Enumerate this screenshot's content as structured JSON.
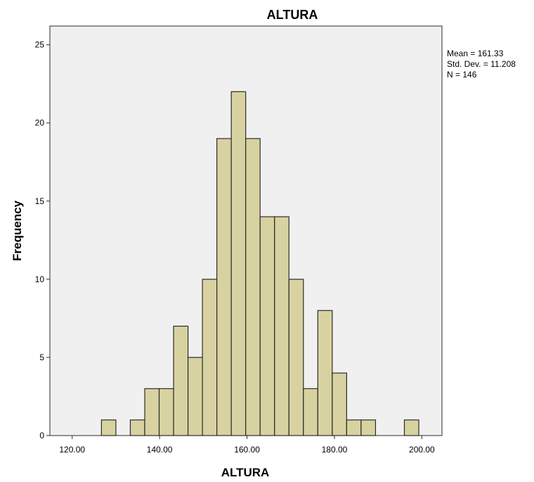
{
  "chart_data": {
    "type": "bar",
    "title": "ALTURA",
    "xlabel": "ALTURA",
    "ylabel": "Frequency",
    "bin_width": 3.3,
    "bins": [
      {
        "x_start": 126.7,
        "count": 1
      },
      {
        "x_start": 133.3,
        "count": 1
      },
      {
        "x_start": 136.6,
        "count": 3
      },
      {
        "x_start": 139.9,
        "count": 3
      },
      {
        "x_start": 143.2,
        "count": 7
      },
      {
        "x_start": 146.5,
        "count": 5
      },
      {
        "x_start": 149.8,
        "count": 10
      },
      {
        "x_start": 153.1,
        "count": 19
      },
      {
        "x_start": 156.4,
        "count": 22
      },
      {
        "x_start": 159.7,
        "count": 19
      },
      {
        "x_start": 163.0,
        "count": 14
      },
      {
        "x_start": 166.3,
        "count": 14
      },
      {
        "x_start": 169.6,
        "count": 10
      },
      {
        "x_start": 172.9,
        "count": 3
      },
      {
        "x_start": 176.2,
        "count": 8
      },
      {
        "x_start": 179.5,
        "count": 4
      },
      {
        "x_start": 182.8,
        "count": 1
      },
      {
        "x_start": 186.1,
        "count": 1
      },
      {
        "x_start": 196.0,
        "count": 1
      }
    ],
    "xlim": [
      114.9,
      204.6
    ],
    "ylim": [
      0,
      26.2
    ],
    "x_ticks": [
      120,
      140,
      160,
      180,
      200
    ],
    "x_tick_labels": [
      "120.00",
      "140.00",
      "160.00",
      "180.00",
      "200.00"
    ],
    "y_ticks": [
      0,
      5,
      10,
      15,
      20,
      25
    ],
    "y_tick_labels": [
      "0",
      "5",
      "10",
      "15",
      "20",
      "25"
    ],
    "stats": [
      "Mean = 161.33",
      "Std. Dev. = 11.208",
      "N = 146"
    ],
    "grid": false,
    "legend": "none",
    "colors": {
      "bar_fill": "#D8D2A1",
      "bar_stroke": "#2b2b2b",
      "plot_background": "#F0F0F0",
      "axis": "#2b2b2b"
    }
  }
}
